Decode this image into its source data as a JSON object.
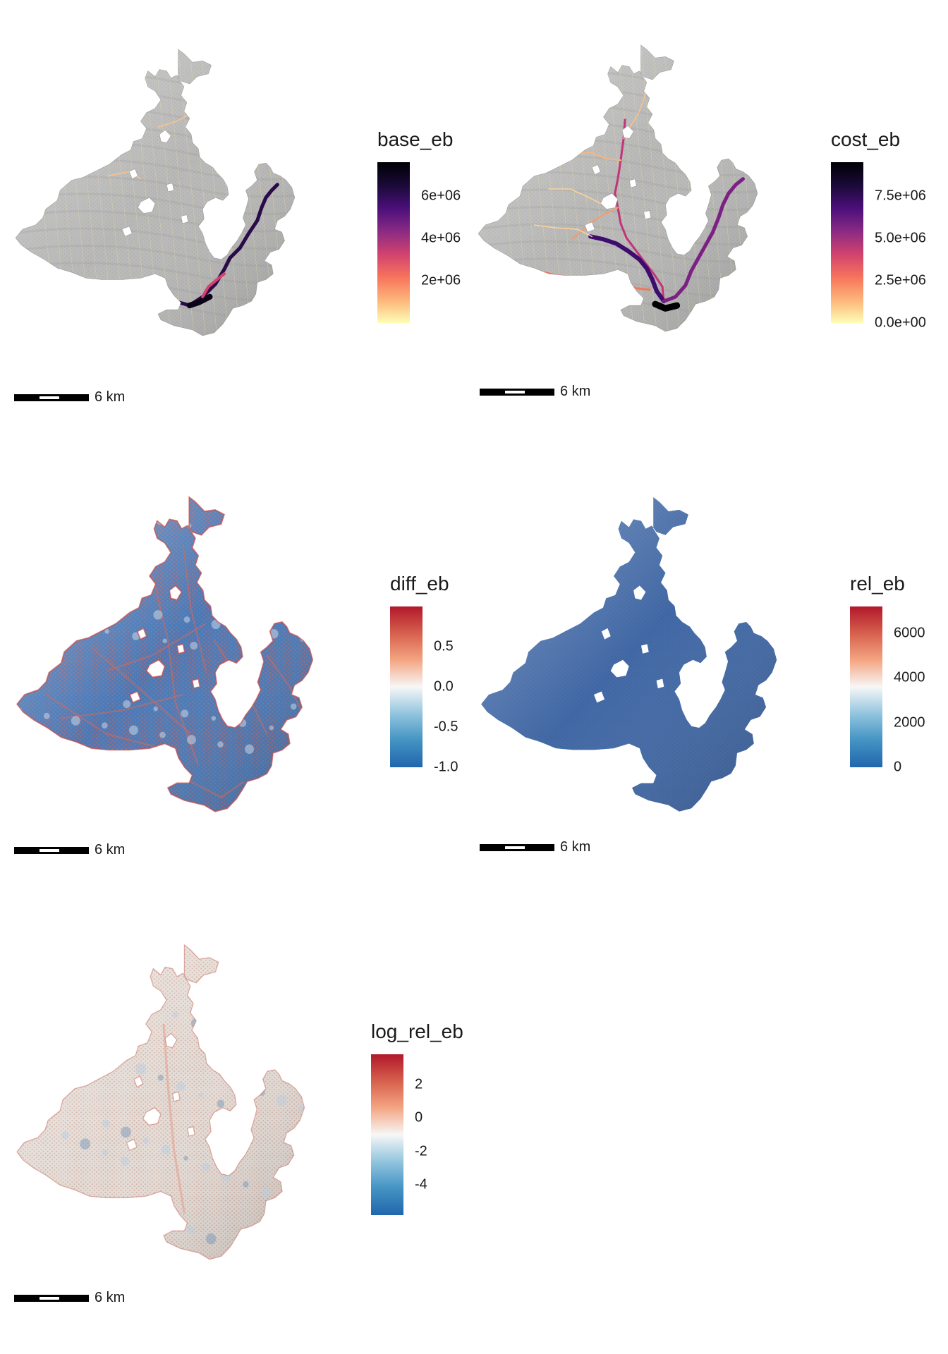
{
  "panels": [
    {
      "id": "base_eb",
      "legend": {
        "title": "base_eb",
        "palette": "magma-rev",
        "gradient": [
          "#fdfeb6",
          "#fdb57a",
          "#f7735c",
          "#d1426f",
          "#8a2a84",
          "#4a0f7a",
          "#1a0a37",
          "#000004"
        ],
        "range": [
          0,
          7600000
        ],
        "ticks": [
          {
            "label": "2e+06",
            "value": 2000000
          },
          {
            "label": "4e+06",
            "value": 4000000
          },
          {
            "label": "6e+06",
            "value": 6000000
          }
        ]
      },
      "fill": "#b9b9b9",
      "texture": "#a8a8a0",
      "scalebar": {
        "label": "6 km"
      }
    },
    {
      "id": "cost_eb",
      "legend": {
        "title": "cost_eb",
        "palette": "magma-rev",
        "gradient": [
          "#fdfeb6",
          "#fdb57a",
          "#f7735c",
          "#d1426f",
          "#8a2a84",
          "#4a0f7a",
          "#1a0a37",
          "#000004"
        ],
        "range": [
          0,
          9500000
        ],
        "ticks": [
          {
            "label": "0.0e+00",
            "value": 0
          },
          {
            "label": "2.5e+06",
            "value": 2500000
          },
          {
            "label": "5.0e+06",
            "value": 5000000
          },
          {
            "label": "7.5e+06",
            "value": 7500000
          }
        ]
      },
      "fill": "#b9b9b9",
      "texture": "#a8a8a0",
      "scalebar": {
        "label": "6 km"
      }
    },
    {
      "id": "diff_eb",
      "legend": {
        "title": "diff_eb",
        "palette": "RdBu",
        "gradient": [
          "#2166ac",
          "#4393c3",
          "#92c5de",
          "#f7f7f7",
          "#f4a582",
          "#d6604d",
          "#b2182b"
        ],
        "range": [
          -1.0,
          1.0
        ],
        "ticks": [
          {
            "label": "-1.0",
            "value": -1.0
          },
          {
            "label": "-0.5",
            "value": -0.5
          },
          {
            "label": "0.0",
            "value": 0.0
          },
          {
            "label": "0.5",
            "value": 0.5
          }
        ]
      },
      "fill": "#4a79b6",
      "texture": "#c96a6a",
      "scalebar": {
        "label": "6 km"
      }
    },
    {
      "id": "rel_eb",
      "legend": {
        "title": "rel_eb",
        "palette": "RdBu",
        "gradient": [
          "#2166ac",
          "#4393c3",
          "#92c5de",
          "#f7f7f7",
          "#f4a582",
          "#d6604d",
          "#b2182b"
        ],
        "range": [
          0,
          7200
        ],
        "ticks": [
          {
            "label": "0",
            "value": 0
          },
          {
            "label": "2000",
            "value": 2000
          },
          {
            "label": "4000",
            "value": 4000
          },
          {
            "label": "6000",
            "value": 6000
          }
        ]
      },
      "fill": "#4269a6",
      "texture": "#3c5f98",
      "scalebar": {
        "label": "6 km"
      }
    },
    {
      "id": "log_rel_eb",
      "legend": {
        "title": "log_rel_eb",
        "palette": "RdBu",
        "gradient": [
          "#2166ac",
          "#4393c3",
          "#92c5de",
          "#f7f7f7",
          "#f4a582",
          "#d6604d",
          "#b2182b"
        ],
        "range": [
          -5.8,
          3.8
        ],
        "ticks": [
          {
            "label": "-4",
            "value": -4
          },
          {
            "label": "-2",
            "value": -2
          },
          {
            "label": "0",
            "value": 0
          },
          {
            "label": "2",
            "value": 2
          }
        ]
      },
      "fill": "#e4dcd6",
      "texture": "#c69a8e",
      "scalebar": {
        "label": "6 km"
      }
    }
  ]
}
